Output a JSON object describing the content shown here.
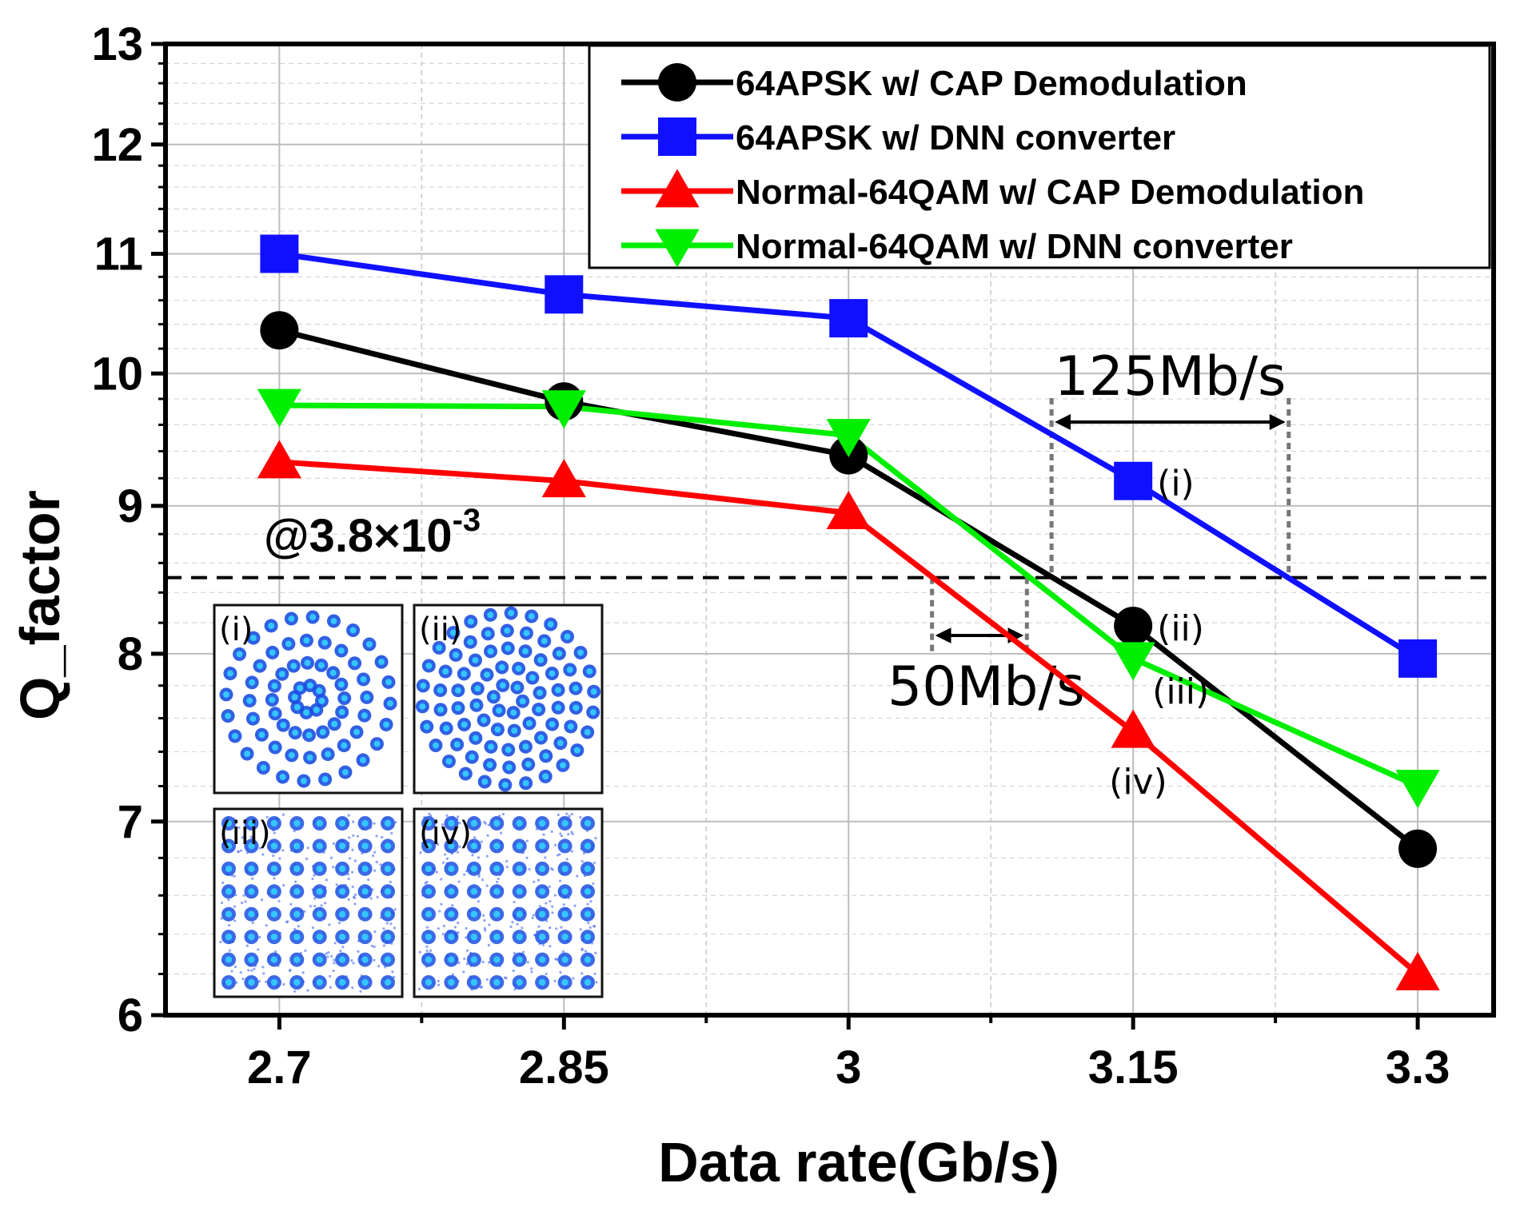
{
  "chart_data": {
    "type": "line",
    "xlabel": "Data rate(Gb/s)",
    "ylabel": "Q_factor",
    "x": [
      2.7,
      2.85,
      3.0,
      3.15,
      3.3
    ],
    "x_tick_labels": [
      "2.7",
      "2.85",
      "3",
      "3.15",
      "3.3"
    ],
    "xlim": [
      2.64,
      3.34
    ],
    "ylim": [
      6,
      13
    ],
    "y_scale": "log",
    "y_ticks": [
      6,
      7,
      8,
      9,
      10,
      11,
      12,
      13
    ],
    "y_tick_labels": [
      "6",
      "7",
      "8",
      "9",
      "10",
      "11",
      "12",
      "13"
    ],
    "grid": true,
    "legend_position": "top-right",
    "series": [
      {
        "name": "64APSK w/ CAP Demodulation",
        "color": "#000000",
        "marker": "circle",
        "values": [
          10.35,
          9.78,
          9.37,
          8.18,
          6.85
        ]
      },
      {
        "name": "64APSK w/ DNN converter",
        "color": "#1010ff",
        "marker": "square",
        "values": [
          11.0,
          10.65,
          10.45,
          9.18,
          7.97
        ]
      },
      {
        "name": "Normal-64QAM w/ CAP Demodulation",
        "color": "#ff0000",
        "marker": "triangle-up",
        "values": [
          9.32,
          9.18,
          8.95,
          7.52,
          6.2
        ]
      },
      {
        "name": "Normal-64QAM w/ DNN converter",
        "color": "#00ee00",
        "marker": "triangle-down",
        "values": [
          9.75,
          9.74,
          9.52,
          7.97,
          7.2
        ]
      }
    ],
    "threshold": {
      "value": 8.5,
      "label_prefix": "@3.8×10",
      "label_exp": "-3"
    },
    "annotations": [
      {
        "id": "gap-dnn",
        "text": "125Mb/s",
        "x_from": 3.107,
        "x_to": 3.232
      },
      {
        "id": "gap-qam",
        "text": "50Mb/s",
        "x_from": 3.044,
        "x_to": 3.094
      }
    ],
    "point_labels": [
      {
        "text": "(i)",
        "series": 1,
        "index": 3
      },
      {
        "text": "(ii)",
        "series": 0,
        "index": 3
      },
      {
        "text": "(iii)",
        "series": 3,
        "index": 3
      },
      {
        "text": "(iv)",
        "series": 2,
        "index": 3
      }
    ],
    "insets": [
      {
        "label": "(i)",
        "kind": "apsk"
      },
      {
        "label": "(ii)",
        "kind": "apsk"
      },
      {
        "label": "(iii)",
        "kind": "qam"
      },
      {
        "label": "(iv)",
        "kind": "qam"
      }
    ]
  }
}
